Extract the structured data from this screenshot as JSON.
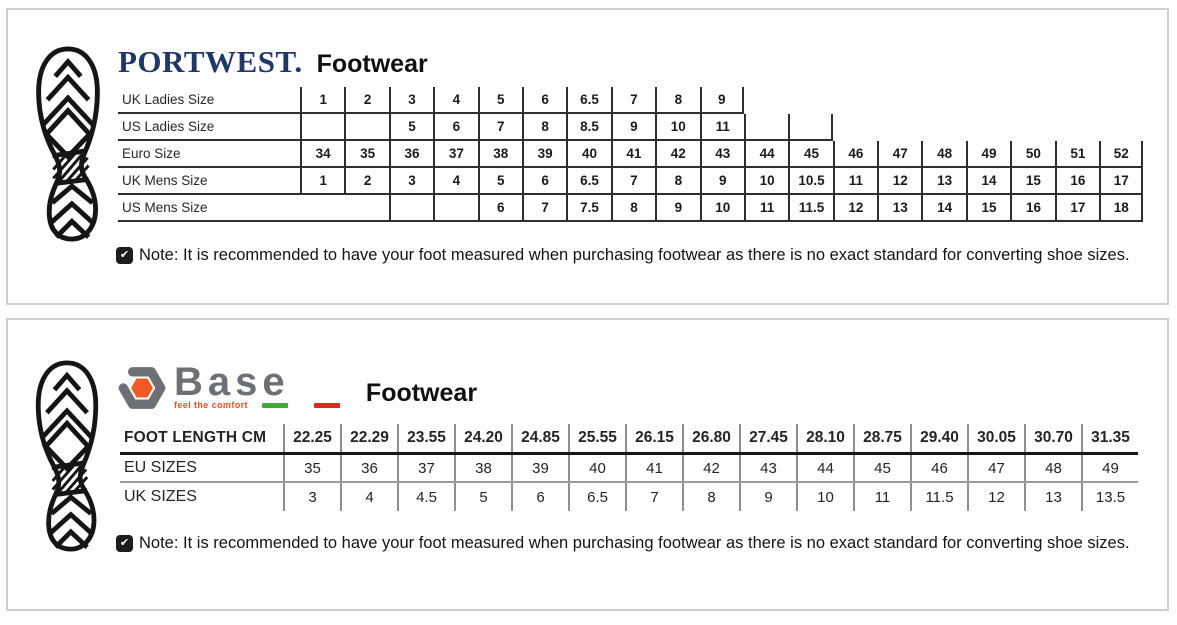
{
  "panels": [
    {
      "brand": {
        "name": "PORTWEST.",
        "title": "Footwear"
      },
      "table": {
        "rows": [
          {
            "label": "UK Ladies Size",
            "start": 0,
            "cells": [
              "1",
              "2",
              "3",
              "4",
              "5",
              "6",
              "6.5",
              "7",
              "8",
              "9"
            ]
          },
          {
            "label": "US Ladies Size",
            "start": 0,
            "cells": [
              "",
              "",
              "5",
              "6",
              "7",
              "8",
              "8.5",
              "9",
              "10",
              "11",
              "",
              ""
            ]
          },
          {
            "label": "Euro Size",
            "start": 0,
            "cells": [
              "34",
              "35",
              "36",
              "37",
              "38",
              "39",
              "40",
              "41",
              "42",
              "43",
              "44",
              "45",
              "46",
              "47",
              "48",
              "49",
              "50",
              "51",
              "52"
            ]
          },
          {
            "label": "UK Mens Size",
            "start": 0,
            "cells": [
              "1",
              "2",
              "3",
              "4",
              "5",
              "6",
              "6.5",
              "7",
              "8",
              "9",
              "10",
              "10.5",
              "11",
              "12",
              "13",
              "14",
              "15",
              "16",
              "17"
            ]
          },
          {
            "label": "US Mens Size",
            "start": 2,
            "cells": [
              "",
              "",
              "6",
              "7",
              "7.5",
              "8",
              "9",
              "10",
              "11",
              "11.5",
              "12",
              "13",
              "14",
              "15",
              "16",
              "17",
              "18"
            ]
          }
        ]
      },
      "note": {
        "text": "Note: It is recommended to have your foot measured when purchasing footwear as there is no exact standard for converting shoe sizes."
      }
    },
    {
      "brand": {
        "name": "Base",
        "tagline": "feel the comfort",
        "title": "Footwear"
      },
      "table": {
        "rows": [
          {
            "label": "FOOT LENGTH CM",
            "header": true,
            "cells": [
              "22.25",
              "22.29",
              "23.55",
              "24.20",
              "24.85",
              "25.55",
              "26.15",
              "26.80",
              "27.45",
              "28.10",
              "28.75",
              "29.40",
              "30.05",
              "30.70",
              "31.35"
            ]
          },
          {
            "label": "EU SIZES",
            "cells": [
              "35",
              "36",
              "37",
              "38",
              "39",
              "40",
              "41",
              "42",
              "43",
              "44",
              "45",
              "46",
              "47",
              "48",
              "49"
            ]
          },
          {
            "label": "UK SIZES",
            "cells": [
              "3",
              "4",
              "4.5",
              "5",
              "6",
              "6.5",
              "7",
              "8",
              "9",
              "10",
              "11",
              "11.5",
              "12",
              "13",
              "13.5"
            ]
          }
        ]
      },
      "note": {
        "text": "Note: It is recommended to have your foot measured when purchasing footwear as there is no exact standard for converting shoe sizes."
      }
    }
  ],
  "icons": {
    "note_check": "✔"
  },
  "colors": {
    "portwest_navy": "#1f3865",
    "base_gray": "#6d7175",
    "base_orange": "#f15a24",
    "tagline_orange": "#f04e23",
    "flag_green": "#3faa35",
    "flag_red": "#e5231f",
    "panel_border": "#cfcfcf",
    "table_line_dark": "#2e2e2e",
    "table_line_gray": "#8f8f8f"
  }
}
